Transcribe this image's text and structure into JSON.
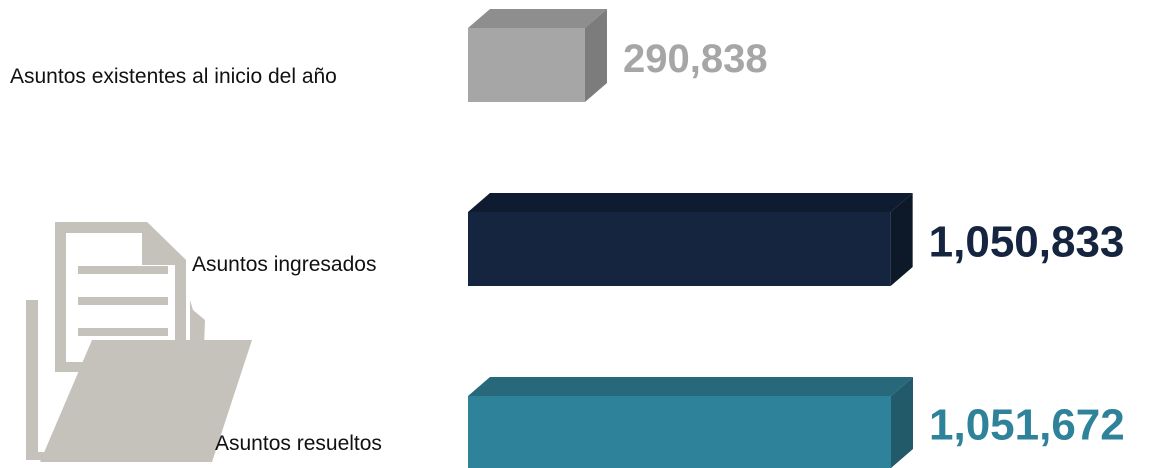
{
  "chart_data": {
    "type": "bar",
    "categories": [
      "Asuntos existentes al inicio del año",
      "Asuntos ingresados",
      "Asuntos resueltos"
    ],
    "values": [
      290838,
      1050833,
      1051672
    ],
    "value_labels": [
      "290,838",
      "1,050,833",
      "1,051,672"
    ],
    "colors": [
      "#a6a6a6",
      "#16253f",
      "#2e8299"
    ],
    "side_colors": [
      "#7c7c7c",
      "#0d1829",
      "#225a69"
    ],
    "top_colors": [
      "#8e8e8e",
      "#0f1b30",
      "#27697b"
    ],
    "orientation": "horizontal",
    "style": "3d",
    "grid": false,
    "legend": "none"
  },
  "illustration": {
    "icon": "folder-with-document-icon",
    "color": "#c4c2bb"
  }
}
